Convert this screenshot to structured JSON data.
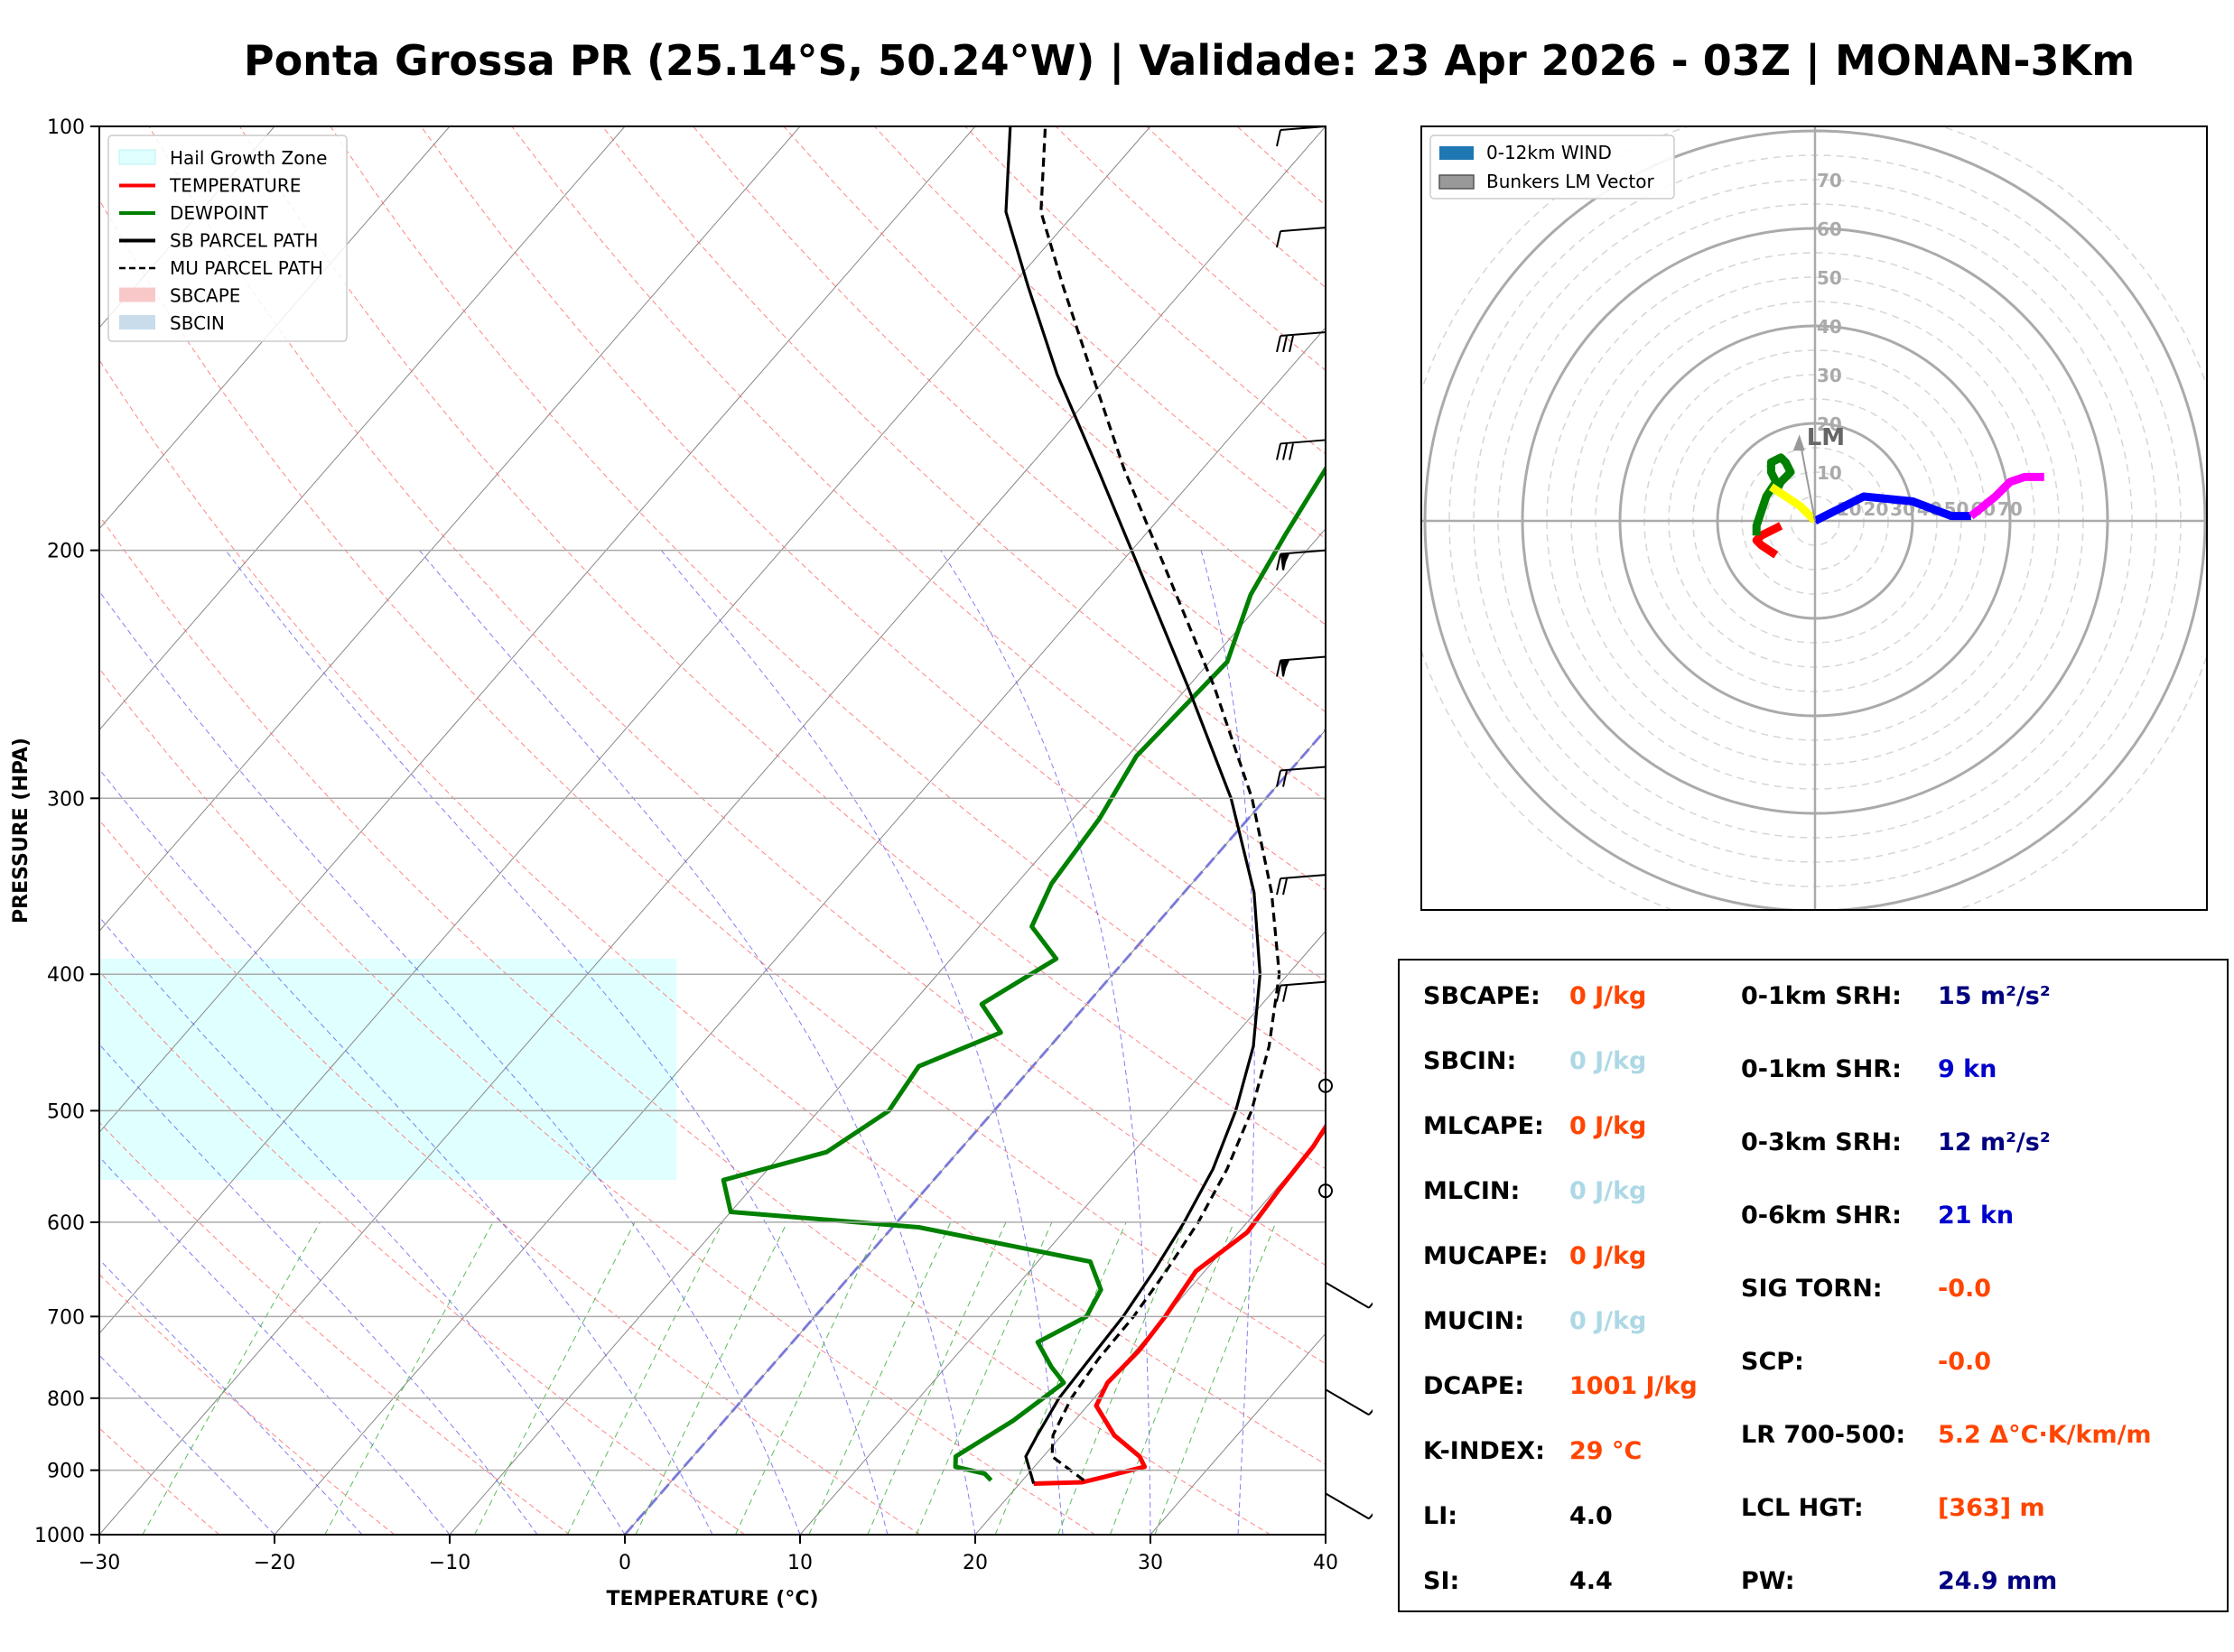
{
  "title": "Ponta Grossa PR (25.14°S, 50.24°W) | Validade: 23 Apr 2026 - 03Z | MONAN-3Km",
  "chart_data": [
    {
      "type": "line",
      "subtype": "skew-T log-p",
      "xlabel": "TEMPERATURE (°C)",
      "ylabel": "PRESSURE (HPA)",
      "xlim": [
        -30,
        40
      ],
      "ylim": [
        1000,
        100
      ],
      "y_scale": "log",
      "x_ticks": [
        "−30",
        "−20",
        "−10",
        "0",
        "10",
        "20",
        "30",
        "40"
      ],
      "y_ticks": [
        "100",
        "200",
        "300",
        "400",
        "500",
        "600",
        "700",
        "800",
        "900",
        "1000"
      ],
      "legend_position": "top-left",
      "legend": [
        {
          "label": "Hail Growth Zone",
          "color": "#e0ffff",
          "kind": "patch"
        },
        {
          "label": "TEMPERATURE",
          "color": "#ff0000",
          "kind": "line"
        },
        {
          "label": "DEWPOINT",
          "color": "#008000",
          "kind": "line"
        },
        {
          "label": "SB PARCEL PATH",
          "color": "#000000",
          "kind": "line"
        },
        {
          "label": "MU PARCEL PATH",
          "color": "#000000",
          "kind": "dashed"
        },
        {
          "label": "SBCAPE",
          "color": "#f8c8c8",
          "kind": "patch"
        },
        {
          "label": "SBCIN",
          "color": "#c8dcec",
          "kind": "patch"
        }
      ],
      "hail_growth_zone": {
        "p_top": 390,
        "p_bottom": 560
      },
      "series": [
        {
          "name": "TEMPERATURE",
          "color": "#ff0000",
          "points": [
            [
              920,
              20.8
            ],
            [
              918,
              23.5
            ],
            [
              910,
              24.5
            ],
            [
              895,
              26.3
            ],
            [
              880,
              25.5
            ],
            [
              850,
              23.0
            ],
            [
              810,
              20.5
            ],
            [
              780,
              20.0
            ],
            [
              740,
              20.2
            ],
            [
              700,
              20.0
            ],
            [
              650,
              19.5
            ],
            [
              610,
              20.5
            ],
            [
              570,
              20.2
            ],
            [
              530,
              20.0
            ],
            [
              470,
              19.0
            ],
            [
              435,
              18.5
            ],
            [
              400,
              18.0
            ],
            [
              360,
              17.5
            ],
            [
              335,
              16.5
            ],
            [
              280,
              15.0
            ],
            [
              240,
              12.0
            ],
            [
              215,
              10.0
            ],
            [
              190,
              8.5
            ],
            [
              170,
              7.5
            ],
            [
              150,
              7.0
            ],
            [
              130,
              6.5
            ],
            [
              115,
              6.0
            ],
            [
              100,
              5.5
            ]
          ]
        },
        {
          "name": "DEWPOINT",
          "color": "#008000",
          "points": [
            [
              915,
              18.2
            ],
            [
              905,
              17.5
            ],
            [
              895,
              15.5
            ],
            [
              880,
              15.0
            ],
            [
              830,
              16.5
            ],
            [
              780,
              17.5
            ],
            [
              760,
              16.0
            ],
            [
              730,
              14.0
            ],
            [
              700,
              15.5
            ],
            [
              670,
              15.0
            ],
            [
              640,
              13.0
            ],
            [
              605,
              1.5
            ],
            [
              590,
              -10.0
            ],
            [
              560,
              -12.0
            ],
            [
              535,
              -7.5
            ],
            [
              500,
              -6.0
            ],
            [
              465,
              -6.5
            ],
            [
              440,
              -3.5
            ],
            [
              420,
              -6.0
            ],
            [
              390,
              -4.0
            ],
            [
              370,
              -7.0
            ],
            [
              345,
              -8.0
            ],
            [
              310,
              -8.5
            ],
            [
              280,
              -9.5
            ],
            [
              240,
              -9.0
            ],
            [
              215,
              -11.0
            ],
            [
              195,
              -12.0
            ],
            [
              165,
              -13.5
            ],
            [
              150,
              -13.0
            ],
            [
              130,
              -12.0
            ],
            [
              115,
              -11.0
            ],
            [
              100,
              -10.5
            ]
          ]
        },
        {
          "name": "SB PARCEL PATH",
          "color": "#000000",
          "points": [
            [
              920,
              20.8
            ],
            [
              880,
              19.0
            ],
            [
              850,
              18.6
            ],
            [
              800,
              18.0
            ],
            [
              750,
              17.8
            ],
            [
              700,
              17.6
            ],
            [
              650,
              17.1
            ],
            [
              600,
              16.4
            ],
            [
              550,
              15.4
            ],
            [
              500,
              13.8
            ],
            [
              450,
              11.6
            ],
            [
              400,
              8.4
            ],
            [
              350,
              4.0
            ],
            [
              300,
              -2.0
            ],
            [
              250,
              -10.0
            ],
            [
              200,
              -20.0
            ],
            [
              175,
              -26.0
            ],
            [
              150,
              -33.0
            ],
            [
              130,
              -39.0
            ],
            [
              115,
              -44.0
            ],
            [
              100,
              -48.0
            ]
          ]
        },
        {
          "name": "MU PARCEL PATH",
          "color": "#000000",
          "dash": true,
          "points": [
            [
              915,
              23.5
            ],
            [
              880,
              20.5
            ],
            [
              850,
              19.5
            ],
            [
              800,
              18.7
            ],
            [
              750,
              18.3
            ],
            [
              700,
              18.2
            ],
            [
              650,
              17.8
            ],
            [
              600,
              17.2
            ],
            [
              550,
              16.2
            ],
            [
              500,
              14.7
            ],
            [
              450,
              12.5
            ],
            [
              400,
              9.5
            ],
            [
              350,
              5.0
            ],
            [
              300,
              -0.8
            ],
            [
              250,
              -8.5
            ],
            [
              200,
              -18.5
            ],
            [
              175,
              -24.5
            ],
            [
              150,
              -31.0
            ],
            [
              130,
              -37.0
            ],
            [
              115,
              -42.0
            ],
            [
              100,
              -46.0
            ]
          ]
        }
      ]
    },
    {
      "type": "scatter",
      "subtype": "hodograph",
      "rings": [
        "10",
        "20",
        "30",
        "40",
        "50",
        "60",
        "70"
      ],
      "legend_position": "top-left",
      "legend": [
        {
          "label": "0-12km WIND",
          "color": "#1f77b4"
        },
        {
          "label": "Bunkers LM Vector",
          "color": "#999999"
        }
      ],
      "lm_label": "LM",
      "lm_vector": [
        -8,
        20
      ],
      "segments": [
        {
          "color": "#ff0000",
          "points": [
            [
              -8,
              -7
            ],
            [
              -11,
              -5
            ],
            [
              -12,
              -4
            ],
            [
              -11,
              -3
            ],
            [
              -9,
              -2
            ],
            [
              -7,
              -1
            ]
          ]
        },
        {
          "color": "#008000",
          "points": [
            [
              -12,
              -3
            ],
            [
              -12,
              -1
            ],
            [
              -11,
              2
            ],
            [
              -10,
              5
            ],
            [
              -8,
              8
            ],
            [
              -9,
              10
            ],
            [
              -9,
              12
            ],
            [
              -7,
              13
            ],
            [
              -6,
              12
            ],
            [
              -5,
              10
            ],
            [
              -7,
              8
            ],
            [
              -8,
              6
            ]
          ]
        },
        {
          "color": "#ffff00",
          "points": [
            [
              -9,
              7
            ],
            [
              -6,
              5
            ],
            [
              -3,
              3
            ],
            [
              0,
              0
            ]
          ]
        },
        {
          "color": "#0000ff",
          "points": [
            [
              0,
              0
            ],
            [
              4,
              2
            ],
            [
              10,
              5
            ],
            [
              20,
              4
            ],
            [
              28,
              1
            ],
            [
              32,
              1
            ]
          ]
        },
        {
          "color": "#ff00ff",
          "points": [
            [
              32,
              1
            ],
            [
              37,
              5
            ],
            [
              40,
              8
            ],
            [
              43,
              9
            ],
            [
              47,
              9
            ]
          ]
        }
      ]
    }
  ],
  "wind_barbs": {
    "pressures": [
      100,
      118,
      140,
      167,
      200,
      238,
      285,
      340,
      405,
      480,
      570,
      680,
      810,
      960
    ]
  },
  "stats": {
    "col1": [
      {
        "label": "SBCAPE:",
        "value": "0 J/kg",
        "color": "#ff4500"
      },
      {
        "label": "SBCIN:",
        "value": "0 J/kg",
        "color": "#add8e6"
      },
      {
        "label": "MLCAPE:",
        "value": "0 J/kg",
        "color": "#ff4500"
      },
      {
        "label": "MLCIN:",
        "value": "0 J/kg",
        "color": "#add8e6"
      },
      {
        "label": "MUCAPE:",
        "value": "0 J/kg",
        "color": "#ff4500"
      },
      {
        "label": "MUCIN:",
        "value": "0 J/kg",
        "color": "#add8e6"
      },
      {
        "label": "DCAPE:",
        "value": "1001 J/kg",
        "color": "#ff4500"
      },
      {
        "label": "K-INDEX:",
        "value": "29 °C",
        "color": "#ff4500"
      },
      {
        "label": "LI:",
        "value": "4.0",
        "color": "#000000"
      },
      {
        "label": "SI:",
        "value": "4.4",
        "color": "#000000"
      }
    ],
    "col2": [
      {
        "label": "0-1km SRH:",
        "value": "15 m²/s²",
        "color": "#000080"
      },
      {
        "label": "0-1km SHR:",
        "value": "9 kn",
        "color": "#0000cd"
      },
      {
        "label": "0-3km SRH:",
        "value": "12 m²/s²",
        "color": "#000080"
      },
      {
        "label": "0-6km SHR:",
        "value": "21 kn",
        "color": "#0000cd"
      },
      {
        "label": "SIG TORN:",
        "value": "-0.0",
        "color": "#ff4500"
      },
      {
        "label": "SCP:",
        "value": "-0.0",
        "color": "#ff4500"
      },
      {
        "label": "LR 700-500:",
        "value": "5.2 Δ°C·K/km/m",
        "color": "#ff4500"
      },
      {
        "label": "LCL HGT:",
        "value": "[363] m",
        "color": "#ff4500"
      },
      {
        "label": "PW:",
        "value": "24.9 mm",
        "color": "#000080"
      }
    ]
  }
}
